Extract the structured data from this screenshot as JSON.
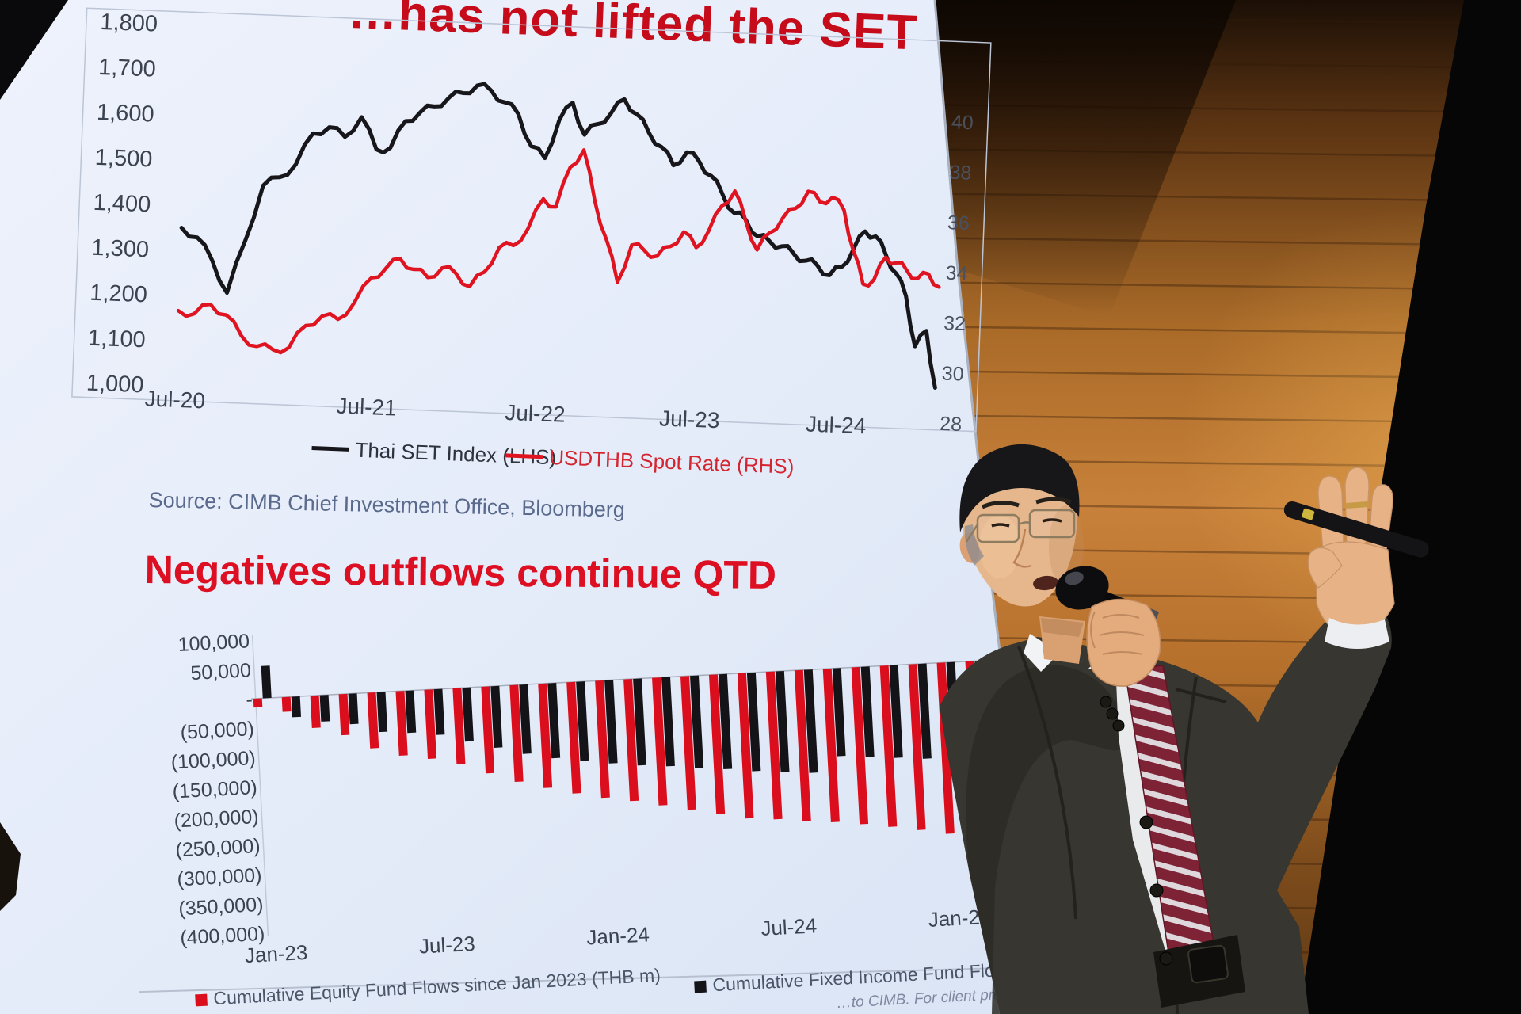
{
  "slide": {
    "title_fragment": "…has not lifted the SET",
    "source_line": "Source: CIMB Chief Investment Office, Bloomberg",
    "section_heading": "Negatives outflows continue QTD",
    "footnote_fragment": "…to CIMB. For client presentation…"
  },
  "chart_data": [
    {
      "type": "line",
      "title": "…has not lifted the SET",
      "x_start": "Jul-20",
      "x_freq": "monthly",
      "x_tick_labels": [
        "Jul-20",
        "Jul-21",
        "Jul-22",
        "Jul-23",
        "Jul-24"
      ],
      "x_tick_month_index": [
        0,
        12,
        24,
        36,
        48
      ],
      "left_axis": {
        "tick_labels": [
          "1,800",
          "1,700",
          "1,600",
          "1,500",
          "1,400",
          "1,300",
          "1,200",
          "1,100",
          "1,000"
        ],
        "tick_values": [
          1800,
          1700,
          1600,
          1500,
          1400,
          1300,
          1200,
          1100,
          1000
        ],
        "range": [
          1000,
          1800
        ]
      },
      "right_axis": {
        "tick_labels": [
          "40",
          "38",
          "36",
          "34",
          "32",
          "30",
          "28"
        ],
        "tick_values": [
          40,
          38,
          36,
          34,
          32,
          30,
          28
        ],
        "range": [
          28,
          40
        ]
      },
      "legend_position": "bottom",
      "grid": false,
      "series": [
        {
          "name": "Thai SET Index (LHS)",
          "axis": "left",
          "color": "#17171b",
          "legend_text_color": "#2e343e",
          "values": [
            1350,
            1330,
            1280,
            1210,
            1325,
            1450,
            1470,
            1500,
            1570,
            1585,
            1565,
            1610,
            1540,
            1545,
            1605,
            1625,
            1640,
            1660,
            1672,
            1690,
            1680,
            1655,
            1630,
            1560,
            1535,
            1620,
            1660,
            1590,
            1615,
            1640,
            1672,
            1640,
            1600,
            1570,
            1530,
            1560,
            1540,
            1510,
            1470,
            1430,
            1415,
            1380,
            1370,
            1360,
            1345,
            1330,
            1320,
            1300,
            1320,
            1360,
            1400,
            1390,
            1350,
            1310,
            1260,
            1150,
            1185,
            1060
          ]
        },
        {
          "name": "USDTHB Spot Rate (RHS)",
          "axis": "right",
          "color": "#e01320",
          "legend_text_color": "#d42630",
          "values": [
            31.3,
            31.2,
            31.6,
            31.2,
            30.4,
            30.0,
            29.9,
            30.0,
            30.9,
            31.3,
            31.2,
            31.9,
            32.9,
            33.3,
            33.7,
            33.3,
            33.0,
            33.4,
            33.2,
            32.7,
            33.3,
            34.3,
            34.4,
            35.1,
            36.3,
            36.0,
            37.6,
            38.3,
            36.3,
            34.8,
            33.1,
            34.6,
            34.4,
            34.2,
            34.6,
            35.2,
            34.6,
            35.3,
            36.3,
            36.9,
            35.7,
            34.6,
            35.3,
            35.9,
            36.3,
            37.0,
            36.6,
            36.8,
            36.3,
            34.7,
            33.4,
            33.6,
            34.5,
            34.3,
            34.0,
            33.7,
            33.9,
            33.4
          ]
        }
      ]
    },
    {
      "type": "bar",
      "x_start": "Jan-23",
      "x_freq": "monthly",
      "x_tick_labels": [
        "Jan-23",
        "Jul-23",
        "Jan-24",
        "Jul-24",
        "Jan-25"
      ],
      "x_tick_month_index": [
        0,
        6,
        12,
        18,
        24
      ],
      "y_axis": {
        "tick_labels": [
          "100,000",
          "50,000",
          "-",
          "(50,000)",
          "(100,000)",
          "(150,000)",
          "(200,000)",
          "(250,000)",
          "(300,000)",
          "(350,000)",
          "(400,000)"
        ],
        "tick_values": [
          100000,
          50000,
          0,
          -50000,
          -100000,
          -150000,
          -200000,
          -250000,
          -300000,
          -350000,
          -400000
        ],
        "range": [
          -400000,
          100000
        ]
      },
      "grid": false,
      "series": [
        {
          "name": "Cumulative Equity Fund Flows since Jan 2023 (THB m)",
          "color": "#da0e1c",
          "values": [
            -15000,
            -25000,
            -55000,
            -70000,
            -95000,
            -110000,
            -118000,
            -130000,
            -148000,
            -165000,
            -178000,
            -190000,
            -200000,
            -208000,
            -218000,
            -228000,
            -238000,
            -248000,
            -252000,
            -258000,
            -262000,
            -268000,
            -275000,
            -283000,
            -292000,
            -300000,
            -308000
          ]
        },
        {
          "name": "Cumulative Fixed Income Fund Flows since Jan…",
          "color": "#141418",
          "values": [
            55000,
            -35000,
            -45000,
            -52000,
            -68000,
            -72000,
            -78000,
            -92000,
            -105000,
            -118000,
            -128000,
            -135000,
            -142000,
            -148000,
            -152000,
            -158000,
            -162000,
            -168000,
            -172000,
            -176000,
            -150000,
            -154000,
            -158000,
            -162000,
            -166000,
            -170000,
            -174000
          ]
        }
      ]
    }
  ],
  "colors": {
    "screen_background": "#e7edf9",
    "chart_red": "#da0e1c",
    "chart_black": "#17171b",
    "heading_red": "#dc1022",
    "axis_text": "#3c4350",
    "source_text": "#5a6a8c",
    "wood_panel": "#b06a28",
    "stage_black": "#060606",
    "suit": "#383630",
    "tie_maroon": "#7e2236",
    "tie_stripe": "#ded8dc",
    "skin": "#e4ab7d"
  }
}
